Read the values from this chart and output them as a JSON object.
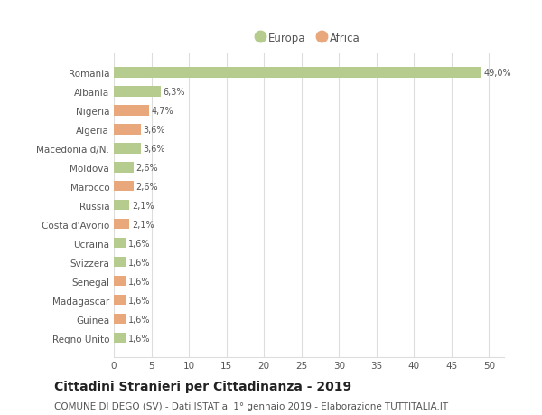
{
  "categories": [
    "Romania",
    "Albania",
    "Nigeria",
    "Algeria",
    "Macedonia d/N.",
    "Moldova",
    "Marocco",
    "Russia",
    "Costa d'Avorio",
    "Ucraina",
    "Svizzera",
    "Senegal",
    "Madagascar",
    "Guinea",
    "Regno Unito"
  ],
  "values": [
    49.0,
    6.3,
    4.7,
    3.6,
    3.6,
    2.6,
    2.6,
    2.1,
    2.1,
    1.6,
    1.6,
    1.6,
    1.6,
    1.6,
    1.6
  ],
  "labels": [
    "49,0%",
    "6,3%",
    "4,7%",
    "3,6%",
    "3,6%",
    "2,6%",
    "2,6%",
    "2,1%",
    "2,1%",
    "1,6%",
    "1,6%",
    "1,6%",
    "1,6%",
    "1,6%",
    "1,6%"
  ],
  "colors": [
    "#b5cc8e",
    "#b5cc8e",
    "#e8a87c",
    "#e8a87c",
    "#b5cc8e",
    "#b5cc8e",
    "#e8a87c",
    "#b5cc8e",
    "#e8a87c",
    "#b5cc8e",
    "#b5cc8e",
    "#e8a87c",
    "#e8a87c",
    "#e8a87c",
    "#b5cc8e"
  ],
  "europa_color": "#b5cc8e",
  "africa_color": "#e8a87c",
  "background_color": "#ffffff",
  "grid_color": "#dddddd",
  "title": "Cittadini Stranieri per Cittadinanza - 2019",
  "subtitle": "COMUNE DI DEGO (SV) - Dati ISTAT al 1° gennaio 2019 - Elaborazione TUTTITALIA.IT",
  "xlim": [
    0,
    52
  ],
  "xticks": [
    0,
    5,
    10,
    15,
    20,
    25,
    30,
    35,
    40,
    45,
    50
  ],
  "legend_europa": "Europa",
  "legend_africa": "Africa",
  "title_fontsize": 10,
  "subtitle_fontsize": 7.5,
  "tick_fontsize": 7.5,
  "label_fontsize": 7,
  "bar_height": 0.55
}
